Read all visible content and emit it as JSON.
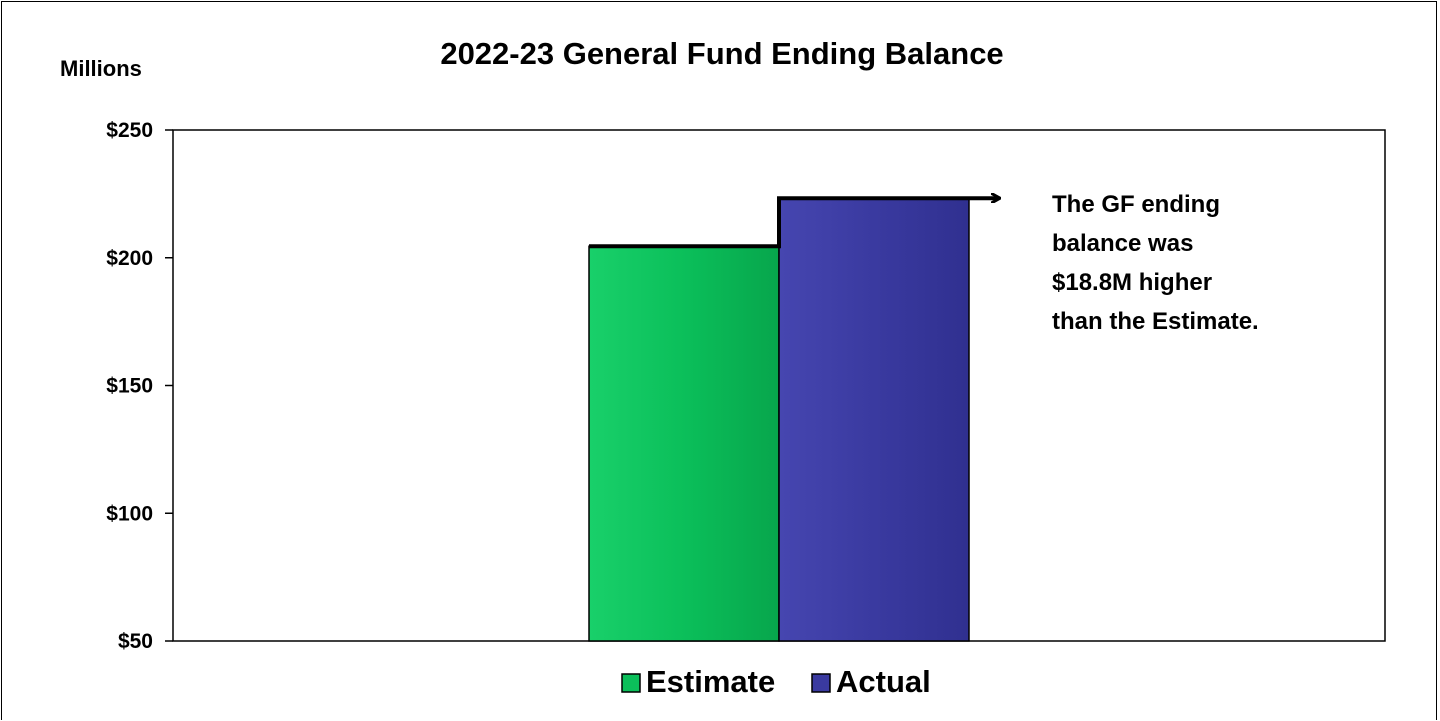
{
  "chart_data": {
    "type": "bar",
    "title": "2022-23 General Fund Ending Balance",
    "unit_label": "Millions",
    "ylim": [
      50,
      250
    ],
    "yticks": [
      50,
      100,
      150,
      200,
      250
    ],
    "ytick_labels": [
      "$50",
      "$100",
      "$150",
      "$200",
      "$250"
    ],
    "grid": false,
    "legend_position": "bottom",
    "series": [
      {
        "name": "Estimate",
        "values": [
          204.5
        ],
        "color": "#0BBF5A"
      },
      {
        "name": "Actual",
        "values": [
          223.3
        ],
        "color": "#3A3AA0"
      }
    ],
    "annotation": "The GF ending balance was $18.8M higher than the Estimate."
  }
}
